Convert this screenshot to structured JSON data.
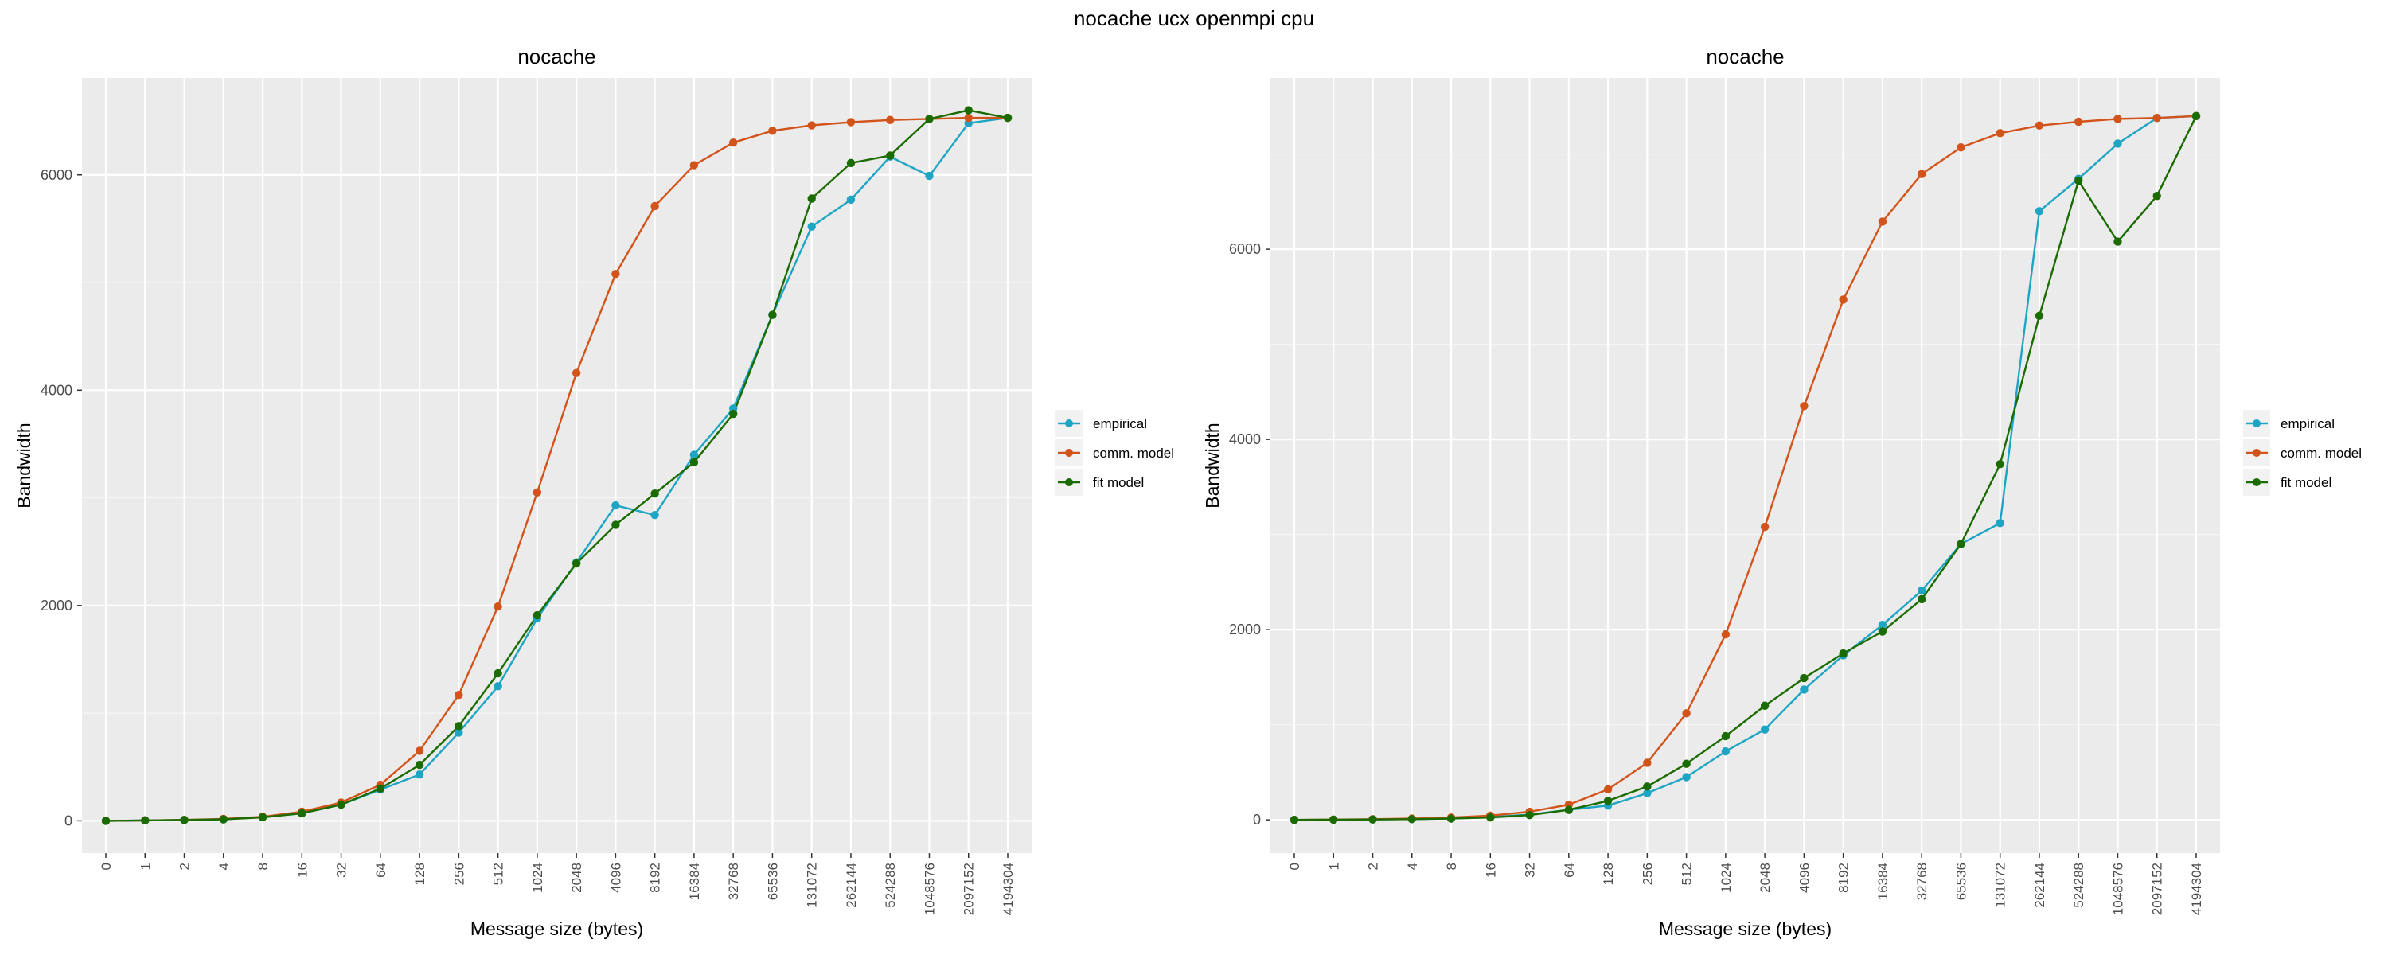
{
  "figure": {
    "title": "nocache ucx openmpi cpu"
  },
  "legend": {
    "items": [
      {
        "label": "empirical",
        "color": "#1fa5c4"
      },
      {
        "label": "comm. model",
        "color": "#d2541a"
      },
      {
        "label": "fit model",
        "color": "#1a6b00"
      }
    ]
  },
  "chart_data": [
    {
      "type": "line",
      "title": "nocache",
      "xlabel": "Message size (bytes)",
      "ylabel": "Bandwidth",
      "categories": [
        "0",
        "1",
        "2",
        "4",
        "8",
        "16",
        "32",
        "64",
        "128",
        "256",
        "512",
        "1024",
        "2048",
        "4096",
        "8192",
        "16384",
        "32768",
        "65536",
        "131072",
        "262144",
        "524288",
        "1048576",
        "2097152",
        "4194304"
      ],
      "ylim": [
        -300,
        6900
      ],
      "yticks": [
        0,
        2000,
        4000,
        6000
      ],
      "grid": true,
      "legend_position": "right",
      "series": [
        {
          "name": "empirical",
          "color": "#1fa5c4",
          "values": [
            0,
            4,
            8,
            14,
            35,
            70,
            150,
            290,
            430,
            820,
            1250,
            1880,
            2400,
            2930,
            2840,
            3400,
            3830,
            4700,
            5520,
            5770,
            6170,
            5990,
            6480,
            6530
          ]
        },
        {
          "name": "comm. model",
          "color": "#d2541a",
          "values": [
            0,
            4,
            9,
            18,
            38,
            85,
            170,
            335,
            650,
            1170,
            1990,
            3050,
            4160,
            5080,
            5710,
            6090,
            6300,
            6410,
            6460,
            6490,
            6510,
            6520,
            6530,
            6530
          ]
        },
        {
          "name": "fit model",
          "color": "#1a6b00",
          "values": [
            0,
            4,
            8,
            14,
            33,
            70,
            150,
            300,
            520,
            880,
            1370,
            1910,
            2390,
            2750,
            3040,
            3330,
            3780,
            4700,
            5780,
            6110,
            6180,
            6520,
            6600,
            6530
          ]
        }
      ]
    },
    {
      "type": "line",
      "title": "nocache",
      "xlabel": "Message size (bytes)",
      "ylabel": "Bandwidth",
      "categories": [
        "0",
        "1",
        "2",
        "4",
        "8",
        "16",
        "32",
        "64",
        "128",
        "256",
        "512",
        "1024",
        "2048",
        "4096",
        "8192",
        "16384",
        "32768",
        "65536",
        "131072",
        "262144",
        "524288",
        "1048576",
        "2097152",
        "4194304"
      ],
      "ylim": [
        -350,
        7800
      ],
      "yticks": [
        0,
        2000,
        4000,
        6000
      ],
      "grid": true,
      "legend_position": "right",
      "series": [
        {
          "name": "empirical",
          "color": "#1fa5c4",
          "values": [
            0,
            2,
            4,
            8,
            15,
            30,
            55,
            105,
            150,
            280,
            450,
            720,
            950,
            1370,
            1730,
            2050,
            2410,
            2900,
            3120,
            6400,
            6740,
            7110,
            7380,
            7400
          ]
        },
        {
          "name": "comm. model",
          "color": "#d2541a",
          "values": [
            0,
            3,
            7,
            14,
            25,
            45,
            85,
            160,
            320,
            600,
            1120,
            1950,
            3080,
            4350,
            5470,
            6290,
            6790,
            7070,
            7220,
            7300,
            7340,
            7370,
            7380,
            7400
          ]
        },
        {
          "name": "fit model",
          "color": "#1a6b00",
          "values": [
            0,
            2,
            4,
            7,
            13,
            25,
            50,
            105,
            200,
            350,
            590,
            880,
            1200,
            1490,
            1750,
            1980,
            2320,
            2900,
            3740,
            5300,
            6720,
            6080,
            6560,
            7400
          ]
        }
      ]
    }
  ]
}
